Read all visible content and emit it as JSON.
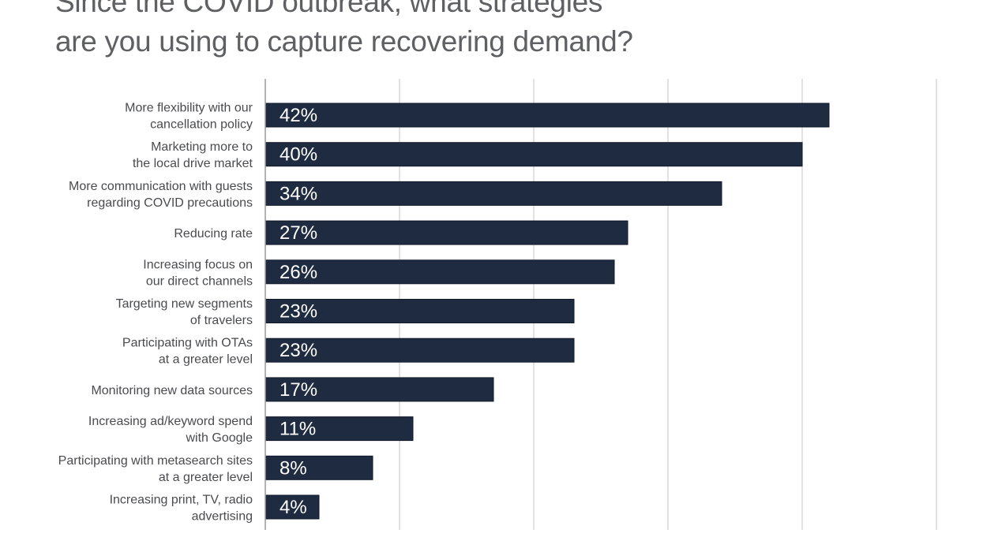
{
  "chart_data": {
    "type": "bar",
    "orientation": "horizontal",
    "title": "Since the COVID outbreak, what strategies are you using to capture recovering demand?",
    "title_lines": [
      "Since the COVID outbreak, what strategies",
      "are you using to capture recovering demand?"
    ],
    "categories": [
      [
        "More flexibility with our",
        "cancellation policy"
      ],
      [
        "Marketing more to",
        "the local drive market"
      ],
      [
        "More communication with guests",
        "regarding COVID precautions"
      ],
      [
        "Reducing rate"
      ],
      [
        "Increasing focus on",
        "our direct channels"
      ],
      [
        "Targeting new segments",
        "of travelers"
      ],
      [
        "Participating with OTAs",
        "at a greater level"
      ],
      [
        "Monitoring new data sources"
      ],
      [
        "Increasing ad/keyword spend",
        "with Google"
      ],
      [
        "Participating with metasearch sites",
        "at a greater level"
      ],
      [
        "Increasing print, TV, radio",
        "advertising"
      ]
    ],
    "values": [
      42,
      40,
      34,
      27,
      26,
      23,
      23,
      17,
      11,
      8,
      4
    ],
    "value_labels": [
      "42%",
      "40%",
      "34%",
      "27%",
      "26%",
      "23%",
      "23%",
      "17%",
      "11%",
      "8%",
      "4%"
    ],
    "xlim": [
      0,
      50
    ],
    "grid_step": 10,
    "grid": true,
    "xlabel": "",
    "ylabel": "",
    "colors": {
      "bar": "#1f2b40",
      "title": "#5f6063",
      "label": "#4a4b4e",
      "grid": "#d9d9d9"
    }
  }
}
